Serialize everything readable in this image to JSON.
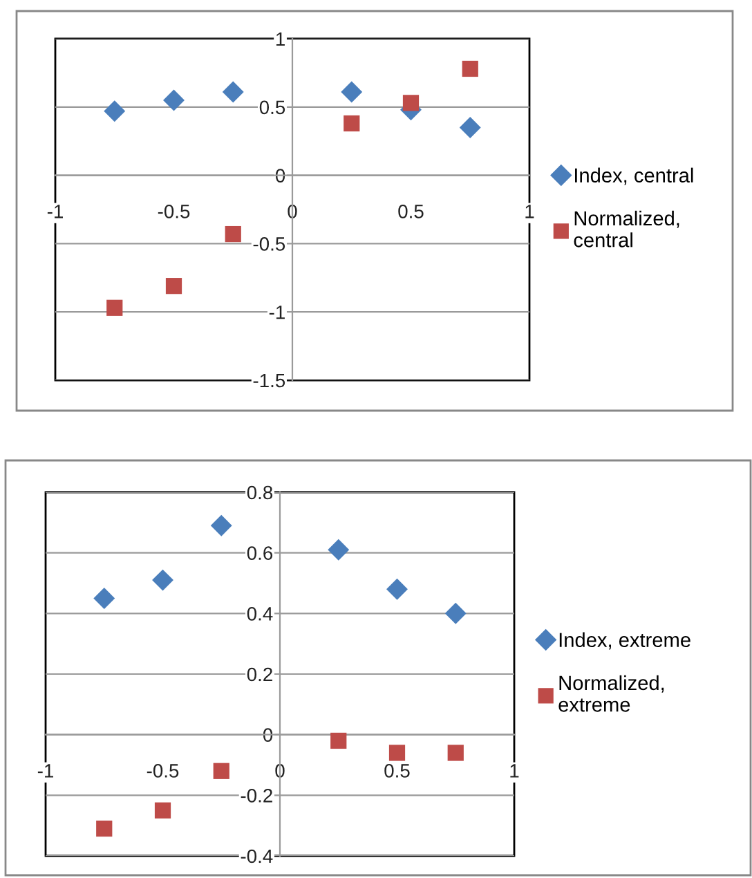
{
  "chart_data": [
    {
      "type": "scatter",
      "x": [
        -0.75,
        -0.5,
        -0.25,
        0.25,
        0.5,
        0.75
      ],
      "series": [
        {
          "name": "Index, central",
          "color": "#4a7ebb",
          "marker": "diamond",
          "values": [
            0.47,
            0.55,
            0.61,
            0.61,
            0.48,
            0.35
          ]
        },
        {
          "name": "Normalized, central",
          "color": "#be4b48",
          "marker": "square",
          "values": [
            -0.97,
            -0.81,
            -0.43,
            0.38,
            0.53,
            0.78
          ]
        }
      ],
      "xlim": [
        -1,
        1
      ],
      "xticks": [
        -1,
        -0.5,
        0,
        0.5,
        1
      ],
      "ylim": [
        -1.5,
        1
      ],
      "yticks": [
        -1.5,
        -1,
        -0.5,
        0,
        0.5,
        1
      ],
      "grid": "y",
      "legend": "right"
    },
    {
      "type": "scatter",
      "x": [
        -0.75,
        -0.5,
        -0.25,
        0.25,
        0.5,
        0.75
      ],
      "series": [
        {
          "name": "Index, extreme",
          "color": "#4a7ebb",
          "marker": "diamond",
          "values": [
            0.45,
            0.51,
            0.69,
            0.61,
            0.48,
            0.4
          ]
        },
        {
          "name": "Normalized, extreme",
          "color": "#be4b48",
          "marker": "square",
          "values": [
            -0.31,
            -0.25,
            -0.12,
            -0.02,
            -0.06,
            -0.06
          ]
        }
      ],
      "xlim": [
        -1,
        1
      ],
      "xticks": [
        -1,
        -0.5,
        0,
        0.5,
        1
      ],
      "ylim": [
        -0.4,
        0.8
      ],
      "yticks": [
        -0.4,
        -0.2,
        0,
        0.2,
        0.4,
        0.6,
        0.8
      ],
      "grid": "y",
      "legend": "right"
    }
  ]
}
